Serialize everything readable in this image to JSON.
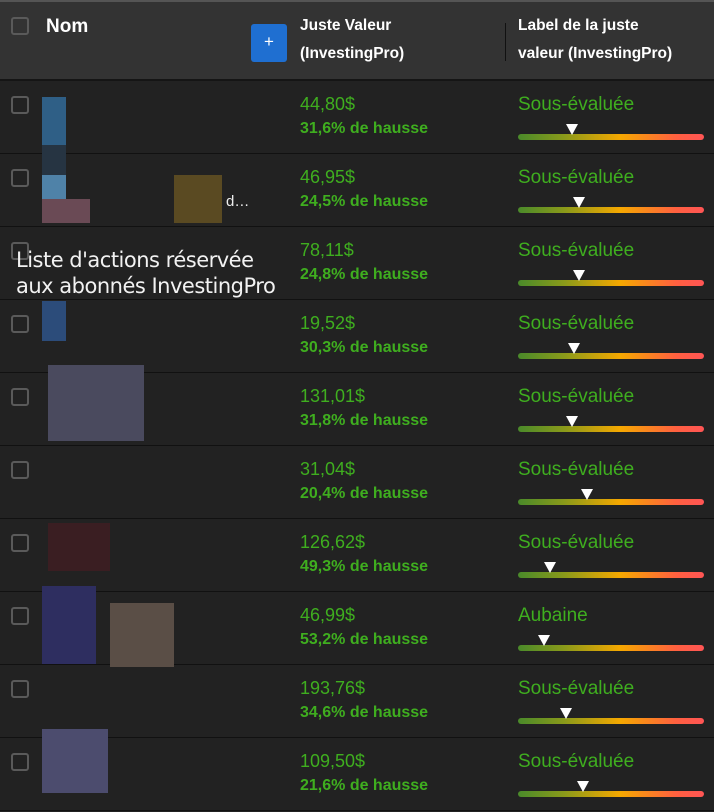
{
  "header": {
    "name_label": "Nom",
    "add_column_label": "+",
    "fair_value_label": "Juste Valeur (InvestingPro)",
    "fair_value_label_line1": "Juste Valeur",
    "fair_value_label_line2": "(InvestingPro)",
    "fv_label_line1": "Label de la juste",
    "fv_label_line2": "valeur (InvestingPro)"
  },
  "locked_message": "Liste d'actions réservée aux abonnés InvestingPro",
  "truncated_name_fragment": "d…",
  "colors": {
    "positive": "#3fae1f",
    "accent": "#1f6fd1",
    "gauge_start": "#4a8a2a",
    "gauge_mid": "#f5a800",
    "gauge_end": "#ff5555"
  },
  "rows": [
    {
      "price": "44,80$",
      "upside": "31,6% de hausse",
      "label": "Sous-évaluée",
      "gauge": 0.29
    },
    {
      "price": "46,95$",
      "upside": "24,5% de hausse",
      "label": "Sous-évaluée",
      "gauge": 0.33
    },
    {
      "price": "78,11$",
      "upside": "24,8% de hausse",
      "label": "Sous-évaluée",
      "gauge": 0.33
    },
    {
      "price": "19,52$",
      "upside": "30,3% de hausse",
      "label": "Sous-évaluée",
      "gauge": 0.3
    },
    {
      "price": "131,01$",
      "upside": "31,8% de hausse",
      "label": "Sous-évaluée",
      "gauge": 0.29
    },
    {
      "price": "31,04$",
      "upside": "20,4% de hausse",
      "label": "Sous-évaluée",
      "gauge": 0.37
    },
    {
      "price": "126,62$",
      "upside": "49,3% de hausse",
      "label": "Sous-évaluée",
      "gauge": 0.17
    },
    {
      "price": "46,99$",
      "upside": "53,2% de hausse",
      "label": "Aubaine",
      "gauge": 0.14
    },
    {
      "price": "193,76$",
      "upside": "34,6% de hausse",
      "label": "Sous-évaluée",
      "gauge": 0.26
    },
    {
      "price": "109,50$",
      "upside": "21,6% de hausse",
      "label": "Sous-évaluée",
      "gauge": 0.35
    }
  ]
}
